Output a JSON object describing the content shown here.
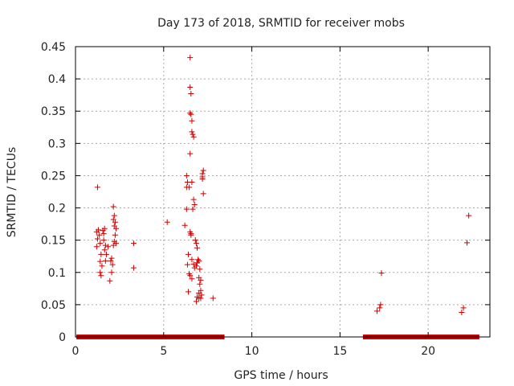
{
  "chart_data": {
    "type": "scatter",
    "title": "Day 173 of 2018, SRMTID for receiver mobs",
    "xlabel": "GPS time / hours",
    "ylabel": "SRMTID / TECUs",
    "xlim": [
      0,
      23.5
    ],
    "ylim": [
      0,
      0.45
    ],
    "x_ticks": [
      0,
      5,
      10,
      15,
      20
    ],
    "x_tick_labels": [
      "0",
      "5",
      "10",
      "15",
      "20"
    ],
    "y_ticks": [
      0,
      0.05,
      0.1,
      0.15,
      0.2,
      0.25,
      0.3,
      0.35,
      0.4,
      0.45
    ],
    "y_tick_labels": [
      "0",
      "0.05",
      "0.1",
      "0.15",
      "0.2",
      "0.25",
      "0.3",
      "0.35",
      "0.4",
      "0.45"
    ],
    "grid": true,
    "marker": "+",
    "colors": {
      "series": "#cc0000",
      "grid": "#aaaaaa",
      "axis": "#000000"
    },
    "zero_bands": [
      [
        0.05,
        8.45
      ],
      [
        16.3,
        22.9
      ]
    ],
    "series": [
      {
        "name": "SRMTID",
        "points": [
          [
            1.25,
            0.232
          ],
          [
            1.2,
            0.163
          ],
          [
            1.3,
            0.166
          ],
          [
            1.35,
            0.158
          ],
          [
            1.25,
            0.152
          ],
          [
            1.4,
            0.145
          ],
          [
            1.2,
            0.14
          ],
          [
            1.45,
            0.128
          ],
          [
            1.4,
            0.117
          ],
          [
            1.5,
            0.11
          ],
          [
            1.4,
            0.1
          ],
          [
            1.45,
            0.095
          ],
          [
            1.55,
            0.165
          ],
          [
            1.6,
            0.16
          ],
          [
            1.65,
            0.168
          ],
          [
            1.6,
            0.15
          ],
          [
            1.7,
            0.142
          ],
          [
            1.65,
            0.135
          ],
          [
            1.75,
            0.128
          ],
          [
            1.7,
            0.118
          ],
          [
            1.85,
            0.14
          ],
          [
            2.0,
            0.118
          ],
          [
            1.95,
            0.087
          ],
          [
            2.05,
            0.122
          ],
          [
            2.1,
            0.112
          ],
          [
            2.05,
            0.1
          ],
          [
            2.15,
            0.202
          ],
          [
            2.2,
            0.188
          ],
          [
            2.15,
            0.182
          ],
          [
            2.25,
            0.178
          ],
          [
            2.2,
            0.172
          ],
          [
            2.3,
            0.168
          ],
          [
            2.25,
            0.158
          ],
          [
            2.2,
            0.148
          ],
          [
            2.3,
            0.145
          ],
          [
            2.15,
            0.142
          ],
          [
            3.3,
            0.145
          ],
          [
            3.3,
            0.107
          ],
          [
            5.2,
            0.178
          ],
          [
            6.5,
            0.433
          ],
          [
            6.5,
            0.387
          ],
          [
            6.55,
            0.377
          ],
          [
            6.5,
            0.347
          ],
          [
            6.55,
            0.345
          ],
          [
            6.6,
            0.335
          ],
          [
            6.6,
            0.318
          ],
          [
            6.65,
            0.314
          ],
          [
            6.7,
            0.31
          ],
          [
            6.5,
            0.284
          ],
          [
            6.3,
            0.25
          ],
          [
            6.35,
            0.24
          ],
          [
            6.3,
            0.232
          ],
          [
            6.45,
            0.232
          ],
          [
            6.6,
            0.24
          ],
          [
            6.7,
            0.213
          ],
          [
            6.75,
            0.205
          ],
          [
            6.65,
            0.198
          ],
          [
            6.3,
            0.198
          ],
          [
            6.2,
            0.173
          ],
          [
            6.5,
            0.163
          ],
          [
            6.55,
            0.16
          ],
          [
            6.55,
            0.158
          ],
          [
            6.8,
            0.15
          ],
          [
            6.85,
            0.145
          ],
          [
            6.9,
            0.138
          ],
          [
            6.4,
            0.128
          ],
          [
            6.35,
            0.112
          ],
          [
            6.45,
            0.098
          ],
          [
            6.5,
            0.095
          ],
          [
            6.6,
            0.09
          ],
          [
            6.4,
            0.07
          ],
          [
            6.6,
            0.12
          ],
          [
            6.7,
            0.113
          ],
          [
            6.75,
            0.107
          ],
          [
            6.85,
            0.11
          ],
          [
            6.9,
            0.115
          ],
          [
            6.95,
            0.12
          ],
          [
            7.0,
            0.118
          ],
          [
            7.05,
            0.105
          ],
          [
            7.0,
            0.092
          ],
          [
            7.1,
            0.088
          ],
          [
            7.05,
            0.082
          ],
          [
            7.1,
            0.072
          ],
          [
            7.0,
            0.068
          ],
          [
            6.9,
            0.062
          ],
          [
            7.0,
            0.06
          ],
          [
            7.1,
            0.06
          ],
          [
            6.85,
            0.055
          ],
          [
            7.15,
            0.065
          ],
          [
            7.2,
            0.248
          ],
          [
            7.25,
            0.258
          ],
          [
            7.2,
            0.253
          ],
          [
            7.25,
            0.222
          ],
          [
            7.2,
            0.245
          ],
          [
            7.8,
            0.06
          ],
          [
            17.1,
            0.04
          ],
          [
            17.25,
            0.045
          ],
          [
            17.3,
            0.05
          ],
          [
            17.35,
            0.099
          ],
          [
            21.9,
            0.038
          ],
          [
            22.0,
            0.045
          ],
          [
            22.2,
            0.146
          ],
          [
            22.3,
            0.188
          ]
        ]
      }
    ]
  }
}
